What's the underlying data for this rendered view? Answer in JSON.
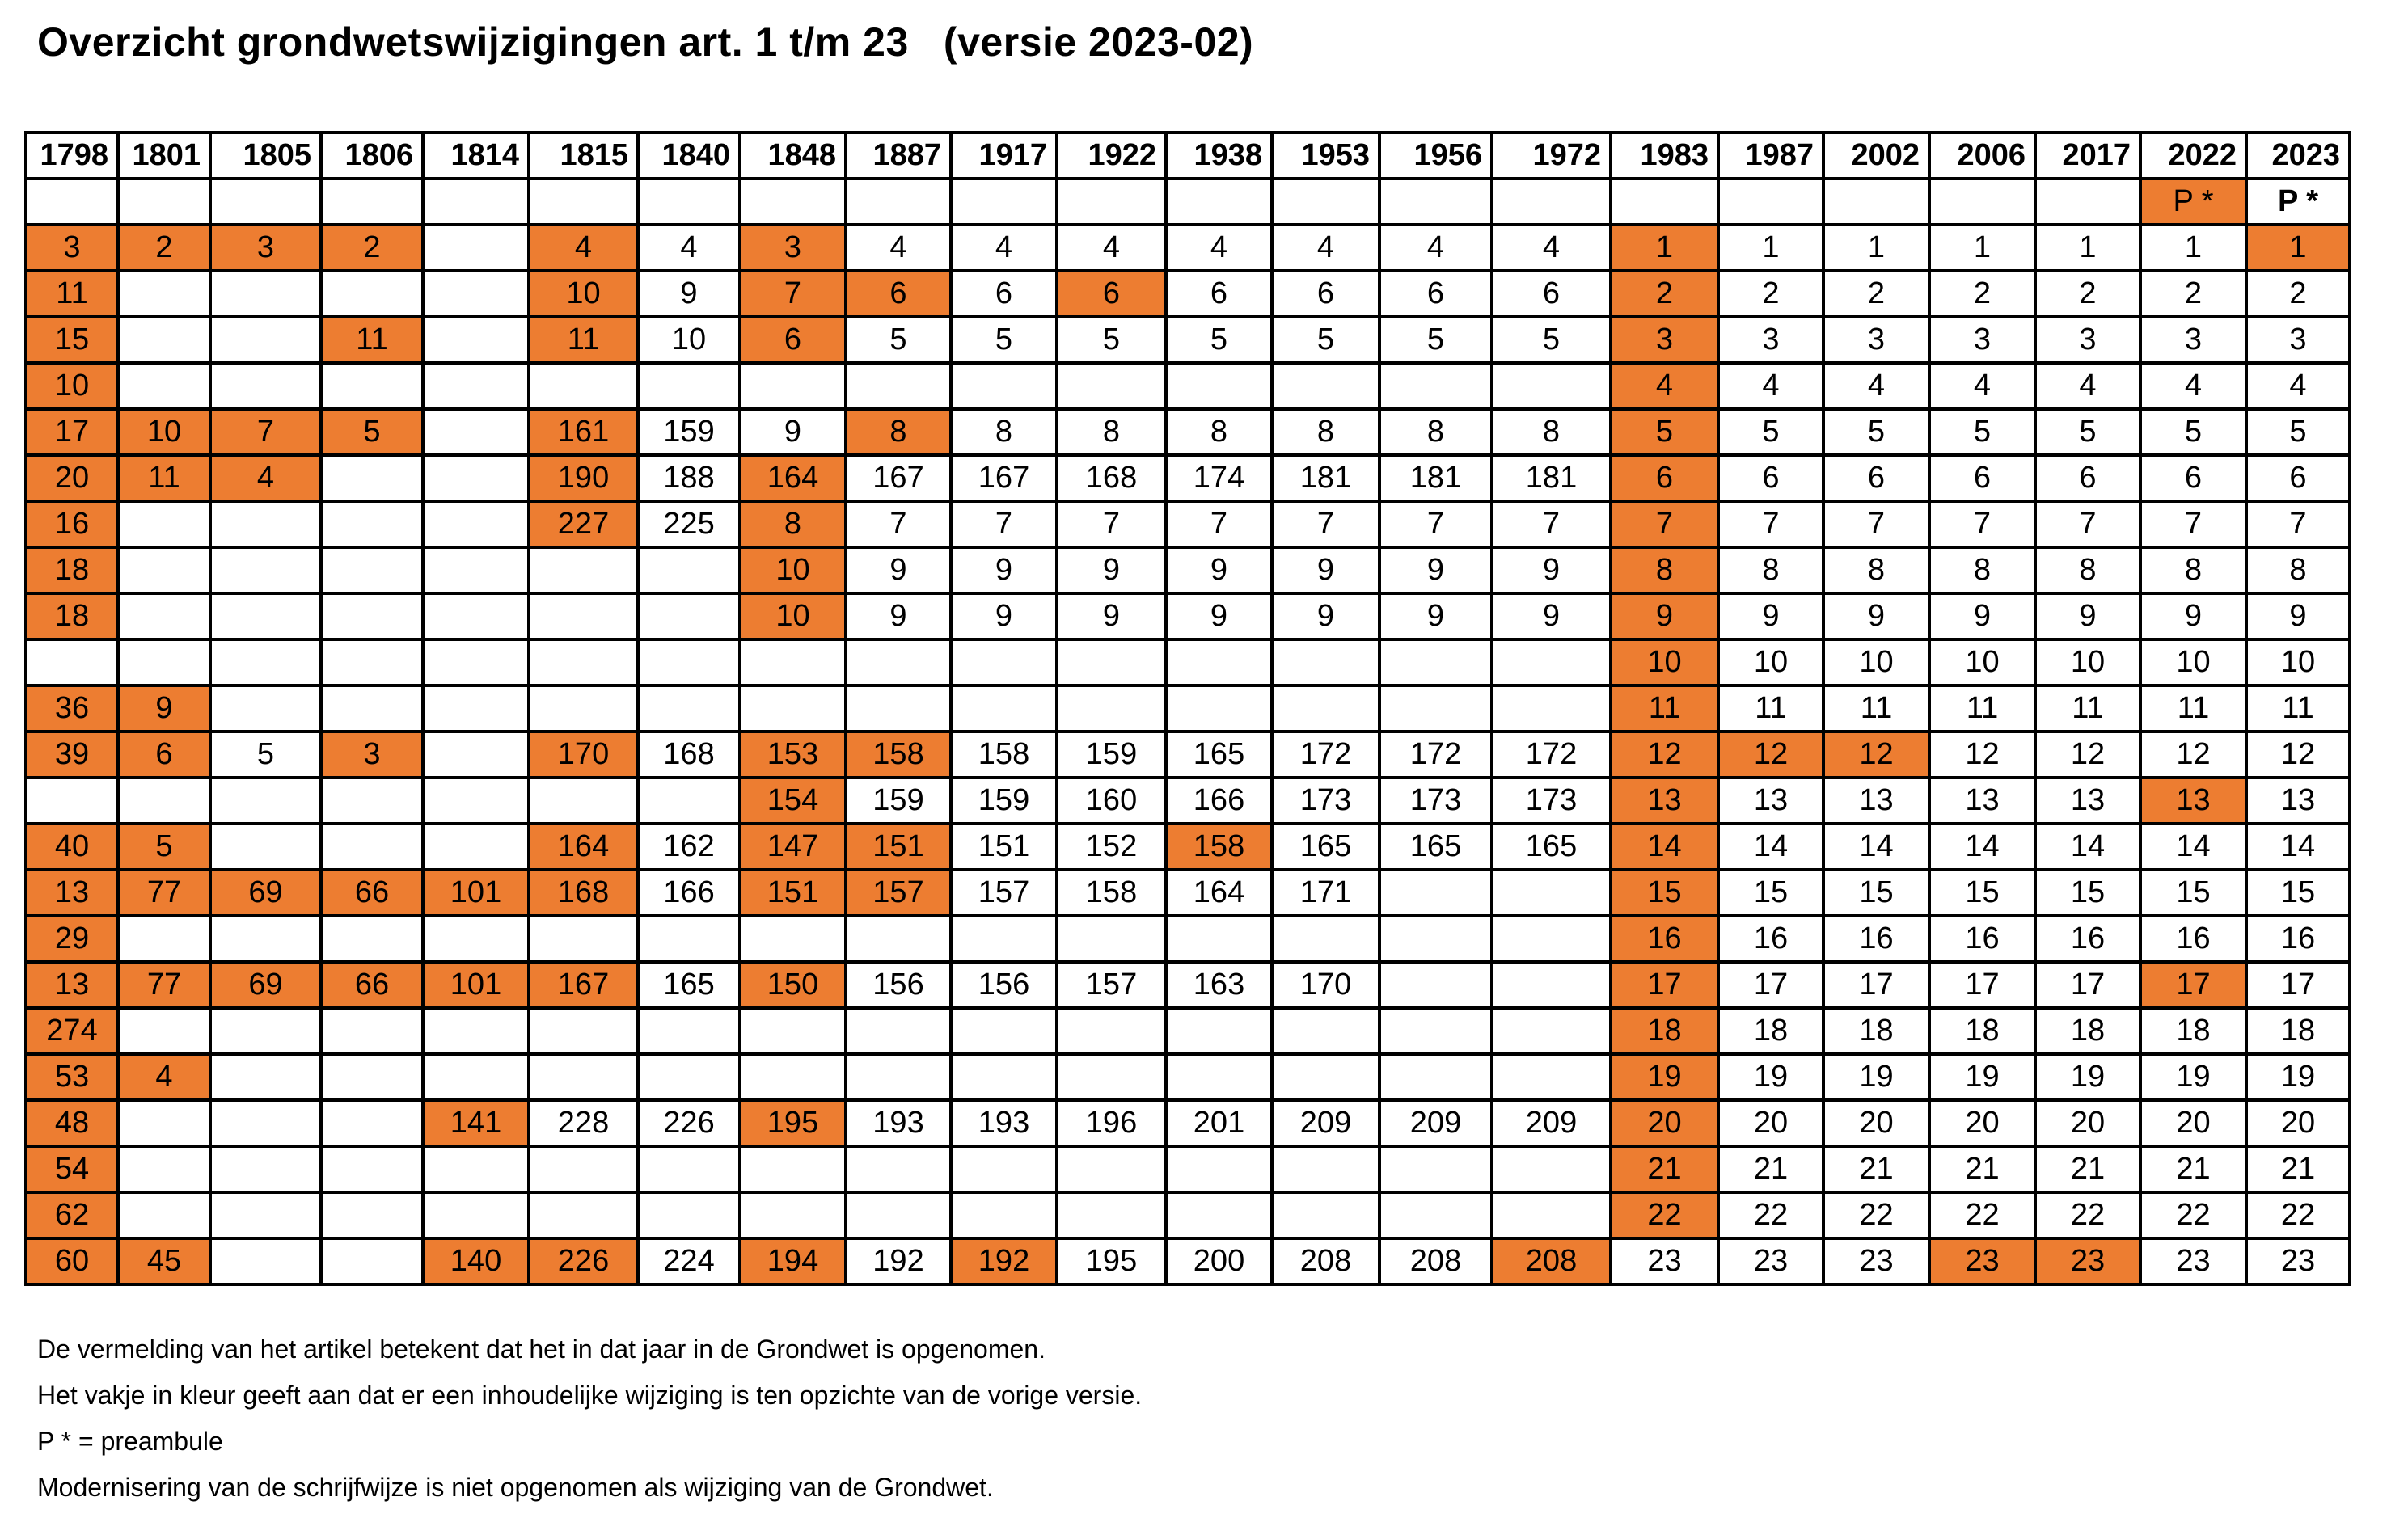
{
  "title": "Overzicht grondwetswijzigingen art. 1 t/m 23   (versie 2023-02)",
  "colors": {
    "highlight": "#ED7D31",
    "border": "#000000",
    "text": "#000000",
    "page_background": "#FFFFFF"
  },
  "table": {
    "years": [
      "1798",
      "1801",
      "1805",
      "1806",
      "1814",
      "1815",
      "1840",
      "1848",
      "1887",
      "1917",
      "1922",
      "1938",
      "1953",
      "1956",
      "1972",
      "1983",
      "1987",
      "2002",
      "2006",
      "2017",
      "2022",
      "2023"
    ],
    "preamble_row": {
      "values": [
        "",
        "",
        "",
        "",
        "",
        "",
        "",
        "",
        "",
        "",
        "",
        "",
        "",
        "",
        "",
        "",
        "",
        "",
        "",
        "",
        "P *",
        "P *"
      ],
      "highlights": [
        20
      ],
      "bold": [
        21
      ]
    },
    "rows": [
      {
        "values": [
          "3",
          "2",
          "3",
          "2",
          "",
          "4",
          "4",
          "3",
          "4",
          "4",
          "4",
          "4",
          "4",
          "4",
          "4",
          "1",
          "1",
          "1",
          "1",
          "1",
          "1",
          "1"
        ],
        "highlights": [
          0,
          1,
          2,
          3,
          5,
          7,
          15,
          21
        ]
      },
      {
        "values": [
          "11",
          "",
          "",
          "",
          "",
          "10",
          "9",
          "7",
          "6",
          "6",
          "6",
          "6",
          "6",
          "6",
          "6",
          "2",
          "2",
          "2",
          "2",
          "2",
          "2",
          "2"
        ],
        "highlights": [
          0,
          5,
          7,
          8,
          10,
          15
        ]
      },
      {
        "values": [
          "15",
          "",
          "",
          "11",
          "",
          "11",
          "10",
          "6",
          "5",
          "5",
          "5",
          "5",
          "5",
          "5",
          "5",
          "3",
          "3",
          "3",
          "3",
          "3",
          "3",
          "3"
        ],
        "highlights": [
          0,
          3,
          5,
          7,
          15
        ]
      },
      {
        "values": [
          "10",
          "",
          "",
          "",
          "",
          "",
          "",
          "",
          "",
          "",
          "",
          "",
          "",
          "",
          "",
          "4",
          "4",
          "4",
          "4",
          "4",
          "4",
          "4"
        ],
        "highlights": [
          0,
          15
        ]
      },
      {
        "values": [
          "17",
          "10",
          "7",
          "5",
          "",
          "161",
          "159",
          "9",
          "8",
          "8",
          "8",
          "8",
          "8",
          "8",
          "8",
          "5",
          "5",
          "5",
          "5",
          "5",
          "5",
          "5"
        ],
        "highlights": [
          0,
          1,
          2,
          3,
          5,
          8,
          15
        ]
      },
      {
        "values": [
          "20",
          "11",
          "4",
          "",
          "",
          "190",
          "188",
          "164",
          "167",
          "167",
          "168",
          "174",
          "181",
          "181",
          "181",
          "6",
          "6",
          "6",
          "6",
          "6",
          "6",
          "6"
        ],
        "highlights": [
          0,
          1,
          2,
          5,
          7,
          15
        ]
      },
      {
        "values": [
          "16",
          "",
          "",
          "",
          "",
          "227",
          "225",
          "8",
          "7",
          "7",
          "7",
          "7",
          "7",
          "7",
          "7",
          "7",
          "7",
          "7",
          "7",
          "7",
          "7",
          "7"
        ],
        "highlights": [
          0,
          5,
          7,
          15
        ]
      },
      {
        "values": [
          "18",
          "",
          "",
          "",
          "",
          "",
          "",
          "10",
          "9",
          "9",
          "9",
          "9",
          "9",
          "9",
          "9",
          "8",
          "8",
          "8",
          "8",
          "8",
          "8",
          "8"
        ],
        "highlights": [
          0,
          7,
          15
        ]
      },
      {
        "values": [
          "18",
          "",
          "",
          "",
          "",
          "",
          "",
          "10",
          "9",
          "9",
          "9",
          "9",
          "9",
          "9",
          "9",
          "9",
          "9",
          "9",
          "9",
          "9",
          "9",
          "9"
        ],
        "highlights": [
          0,
          7,
          15
        ]
      },
      {
        "values": [
          "",
          "",
          "",
          "",
          "",
          "",
          "",
          "",
          "",
          "",
          "",
          "",
          "",
          "",
          "",
          "10",
          "10",
          "10",
          "10",
          "10",
          "10",
          "10"
        ],
        "highlights": [
          15
        ]
      },
      {
        "values": [
          "36",
          "9",
          "",
          "",
          "",
          "",
          "",
          "",
          "",
          "",
          "",
          "",
          "",
          "",
          "",
          "11",
          "11",
          "11",
          "11",
          "11",
          "11",
          "11"
        ],
        "highlights": [
          0,
          1,
          15
        ]
      },
      {
        "values": [
          "39",
          "6",
          "5",
          "3",
          "",
          "170",
          "168",
          "153",
          "158",
          "158",
          "159",
          "165",
          "172",
          "172",
          "172",
          "12",
          "12",
          "12",
          "12",
          "12",
          "12",
          "12"
        ],
        "highlights": [
          0,
          1,
          3,
          5,
          7,
          8,
          15,
          16,
          17
        ]
      },
      {
        "values": [
          "",
          "",
          "",
          "",
          "",
          "",
          "",
          "154",
          "159",
          "159",
          "160",
          "166",
          "173",
          "173",
          "173",
          "13",
          "13",
          "13",
          "13",
          "13",
          "13",
          "13"
        ],
        "highlights": [
          7,
          15,
          20
        ]
      },
      {
        "values": [
          "40",
          "5",
          "",
          "",
          "",
          "164",
          "162",
          "147",
          "151",
          "151",
          "152",
          "158",
          "165",
          "165",
          "165",
          "14",
          "14",
          "14",
          "14",
          "14",
          "14",
          "14"
        ],
        "highlights": [
          0,
          1,
          5,
          7,
          8,
          11,
          15
        ]
      },
      {
        "values": [
          "13",
          "77",
          "69",
          "66",
          "101",
          "168",
          "166",
          "151",
          "157",
          "157",
          "158",
          "164",
          "171",
          "",
          "",
          "15",
          "15",
          "15",
          "15",
          "15",
          "15",
          "15"
        ],
        "highlights": [
          0,
          1,
          2,
          3,
          4,
          5,
          7,
          8,
          15
        ]
      },
      {
        "values": [
          "29",
          "",
          "",
          "",
          "",
          "",
          "",
          "",
          "",
          "",
          "",
          "",
          "",
          "",
          "",
          "16",
          "16",
          "16",
          "16",
          "16",
          "16",
          "16"
        ],
        "highlights": [
          0,
          15
        ]
      },
      {
        "values": [
          "13",
          "77",
          "69",
          "66",
          "101",
          "167",
          "165",
          "150",
          "156",
          "156",
          "157",
          "163",
          "170",
          "",
          "",
          "17",
          "17",
          "17",
          "17",
          "17",
          "17",
          "17"
        ],
        "highlights": [
          0,
          1,
          2,
          3,
          4,
          5,
          7,
          15,
          20
        ]
      },
      {
        "values": [
          "274",
          "",
          "",
          "",
          "",
          "",
          "",
          "",
          "",
          "",
          "",
          "",
          "",
          "",
          "",
          "18",
          "18",
          "18",
          "18",
          "18",
          "18",
          "18"
        ],
        "highlights": [
          0,
          15
        ]
      },
      {
        "values": [
          "53",
          "4",
          "",
          "",
          "",
          "",
          "",
          "",
          "",
          "",
          "",
          "",
          "",
          "",
          "",
          "19",
          "19",
          "19",
          "19",
          "19",
          "19",
          "19"
        ],
        "highlights": [
          0,
          1,
          15
        ]
      },
      {
        "values": [
          "48",
          "",
          "",
          "",
          "141",
          "228",
          "226",
          "195",
          "193",
          "193",
          "196",
          "201",
          "209",
          "209",
          "209",
          "20",
          "20",
          "20",
          "20",
          "20",
          "20",
          "20"
        ],
        "highlights": [
          0,
          4,
          7,
          15
        ]
      },
      {
        "values": [
          "54",
          "",
          "",
          "",
          "",
          "",
          "",
          "",
          "",
          "",
          "",
          "",
          "",
          "",
          "",
          "21",
          "21",
          "21",
          "21",
          "21",
          "21",
          "21"
        ],
        "highlights": [
          0,
          15
        ]
      },
      {
        "values": [
          "62",
          "",
          "",
          "",
          "",
          "",
          "",
          "",
          "",
          "",
          "",
          "",
          "",
          "",
          "",
          "22",
          "22",
          "22",
          "22",
          "22",
          "22",
          "22"
        ],
        "highlights": [
          0,
          15
        ]
      },
      {
        "values": [
          "60",
          "45",
          "",
          "",
          "140",
          "226",
          "224",
          "194",
          "192",
          "192",
          "195",
          "200",
          "208",
          "208",
          "208",
          "23",
          "23",
          "23",
          "23",
          "23",
          "23",
          "23"
        ],
        "highlights": [
          0,
          1,
          4,
          5,
          7,
          9,
          14,
          18,
          19
        ]
      }
    ]
  },
  "footnotes": [
    "De vermelding van het artikel betekent dat het in dat jaar in de Grondwet is opgenomen.",
    "Het vakje in kleur geeft aan dat er een inhoudelijke wijziging is ten opzichte van de vorige versie.",
    "P * = preambule",
    "Modernisering van de schrijfwijze is niet opgenomen als wijziging van de Grondwet."
  ]
}
